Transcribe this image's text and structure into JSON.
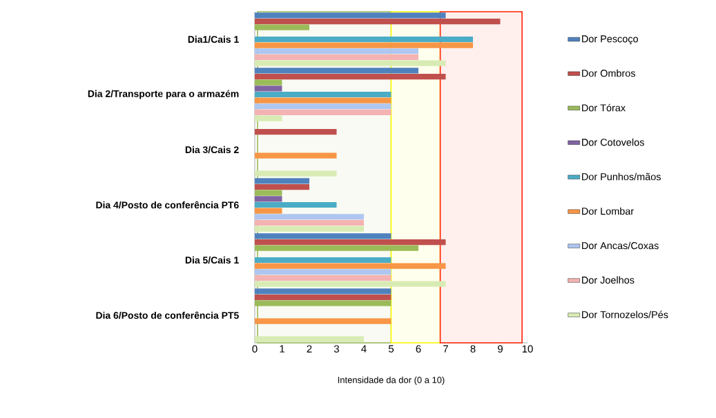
{
  "chart_data": {
    "type": "bar",
    "orientation": "horizontal",
    "xlabel": "Intensidade da dor (0 a 10)",
    "categories": [
      "Dia1/Cais 1",
      "Dia 2/Transporte para o armazém",
      "Dia 3/Cais 2",
      "Dia 4/Posto de conferência PT6",
      "Dia 5/Cais 1",
      "Dia 6/Posto de conferência PT5"
    ],
    "series": [
      {
        "name": "Dor Pescoço",
        "color": "#4f81bd",
        "values": [
          7,
          6,
          0,
          2,
          5,
          5
        ]
      },
      {
        "name": "Dor Ombros",
        "color": "#c0504d",
        "values": [
          9,
          7,
          3,
          2,
          7,
          5
        ]
      },
      {
        "name": "Dor Tórax",
        "color": "#9bbb59",
        "values": [
          2,
          1,
          0,
          1,
          6,
          5
        ]
      },
      {
        "name": "Dor Cotovelos",
        "color": "#8064a2",
        "values": [
          0,
          1,
          0,
          1,
          0,
          0
        ]
      },
      {
        "name": "Dor Punhos/mãos",
        "color": "#4bacc6",
        "values": [
          8,
          5,
          0,
          3,
          5,
          0
        ]
      },
      {
        "name": "Dor Lombar",
        "color": "#f79646",
        "values": [
          8,
          5,
          3,
          1,
          7,
          5
        ]
      },
      {
        "name": "Dor Ancas/Coxas",
        "color": "#aec6f0",
        "values": [
          6,
          5,
          0,
          4,
          5,
          0
        ]
      },
      {
        "name": "Dor Joelhos",
        "color": "#f4b2b2",
        "values": [
          6,
          5,
          0,
          4,
          5,
          0
        ]
      },
      {
        "name": "Dor Tornozelos/Pés",
        "color": "#d8ebb4",
        "values": [
          7,
          1,
          3,
          4,
          7,
          4
        ]
      }
    ],
    "xlim": [
      0,
      10
    ],
    "xticks": [
      0,
      1,
      2,
      3,
      4,
      5,
      6,
      7,
      8,
      9,
      10
    ],
    "bands": [
      {
        "axis": "x",
        "from": 0.1,
        "to": 5,
        "color": "#9bbb59"
      },
      {
        "axis": "x",
        "from": 5,
        "to": 6.8,
        "color": "#ffff00"
      },
      {
        "axis": "x",
        "from": 6.8,
        "to": 9.8,
        "color": "#ff2000"
      }
    ],
    "legend": "right",
    "grid": false
  }
}
